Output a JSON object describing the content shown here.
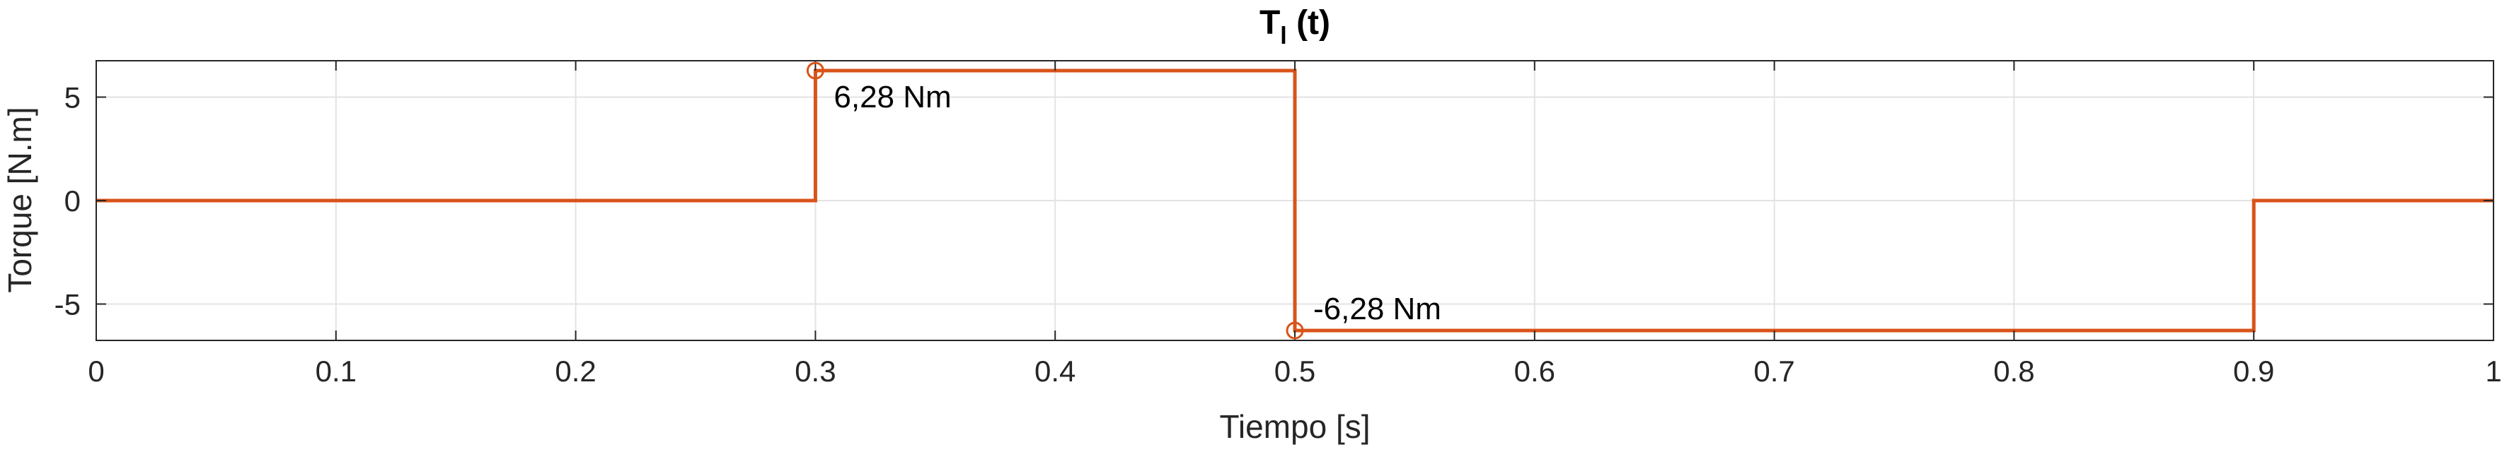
{
  "chart_data": {
    "type": "line",
    "title": "T",
    "title_subscript": "l",
    "title_suffix": " (t)",
    "xlabel": "Tiempo [s]",
    "ylabel": "Torque [N.m]",
    "xlim": [
      0,
      1
    ],
    "ylim": [
      -6.28,
      6.28
    ],
    "xticks": [
      0,
      0.1,
      0.2,
      0.3,
      0.4,
      0.5,
      0.6,
      0.7,
      0.8,
      0.9,
      1
    ],
    "xtick_labels": [
      "0",
      "0.1",
      "0.2",
      "0.3",
      "0.4",
      "0.5",
      "0.6",
      "0.7",
      "0.8",
      "0.9",
      "1"
    ],
    "yticks": [
      -5,
      0,
      5
    ],
    "ytick_labels": [
      "-5",
      "0",
      "5"
    ],
    "grid": true,
    "series": [
      {
        "color": "#d95319",
        "step": true,
        "x": [
          0,
          0.3,
          0.3,
          0.5,
          0.5,
          0.9,
          0.9,
          1
        ],
        "y": [
          0,
          0,
          6.28,
          6.28,
          -6.28,
          -6.28,
          0,
          0
        ]
      }
    ],
    "annotations": [
      {
        "x": 0.3,
        "y": 6.28,
        "text": "6,28 Nm",
        "marker": "circle"
      },
      {
        "x": 0.5,
        "y": -6.28,
        "text": "-6,28 Nm",
        "marker": "circle"
      }
    ]
  }
}
